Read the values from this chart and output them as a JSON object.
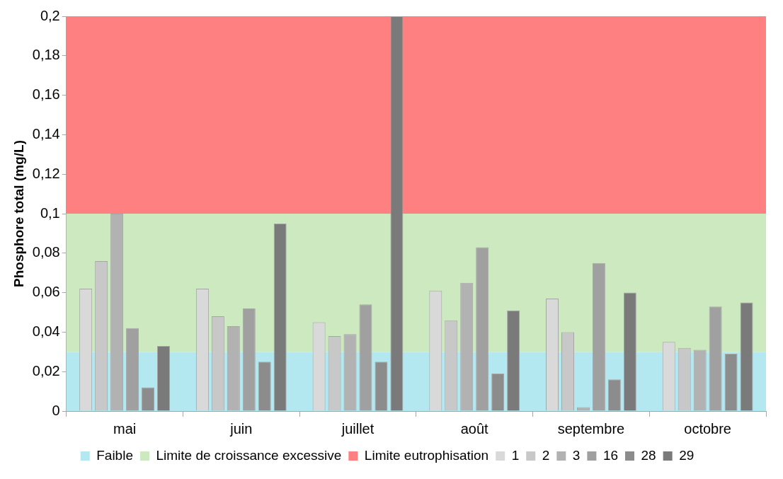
{
  "chart_data": {
    "type": "bar",
    "ylabel": "Phosphore total (mg/L)",
    "categories": [
      "mai",
      "juin",
      "juillet",
      "août",
      "septembre",
      "octobre"
    ],
    "series": [
      {
        "name": "1",
        "color": "#d9d9d9",
        "values": [
          0.062,
          0.062,
          0.045,
          0.061,
          0.057,
          0.035
        ]
      },
      {
        "name": "2",
        "color": "#c8c8c8",
        "values": [
          0.076,
          0.048,
          0.038,
          0.046,
          0.04,
          0.032
        ]
      },
      {
        "name": "3",
        "color": "#b2b2b2",
        "values": [
          0.1,
          0.043,
          0.039,
          0.065,
          0.002,
          0.031
        ]
      },
      {
        "name": "16",
        "color": "#a0a0a0",
        "values": [
          0.042,
          0.052,
          0.054,
          0.083,
          0.075,
          0.053
        ]
      },
      {
        "name": "28",
        "color": "#8c8c8c",
        "values": [
          0.012,
          0.025,
          0.025,
          0.019,
          0.016,
          0.029
        ]
      },
      {
        "name": "29",
        "color": "#7a7a7a",
        "values": [
          0.033,
          0.095,
          0.2,
          0.051,
          0.06,
          0.055
        ]
      }
    ],
    "bands": [
      {
        "axis": "y",
        "from": 0,
        "to": 0.03,
        "label": "Faible",
        "color": "#b3e8f0"
      },
      {
        "axis": "y",
        "from": 0.03,
        "to": 0.1,
        "label": "Limite de croissance excessive",
        "color": "#cce9c0"
      },
      {
        "axis": "y",
        "from": 0.1,
        "to": 0.2,
        "label": "Limite eutrophisation",
        "color": "#ff8080"
      }
    ],
    "ylim": [
      0,
      0.2
    ],
    "yticks": [
      0,
      {
        "value": 0.02,
        "label": "0,02"
      },
      {
        "value": 0.04,
        "label": "0,04"
      },
      {
        "value": 0.06,
        "label": "0,06"
      },
      {
        "value": 0.08,
        "label": "0,08"
      },
      {
        "value": 0.1,
        "label": "0,1"
      },
      {
        "value": 0.12,
        "label": "0,12"
      },
      {
        "value": 0.14,
        "label": "0,14"
      },
      {
        "value": 0.16,
        "label": "0,16"
      },
      {
        "value": 0.18,
        "label": "0,18"
      },
      {
        "value": 0.2,
        "label": "0,2"
      }
    ],
    "grid": false,
    "legend": "bottom"
  }
}
